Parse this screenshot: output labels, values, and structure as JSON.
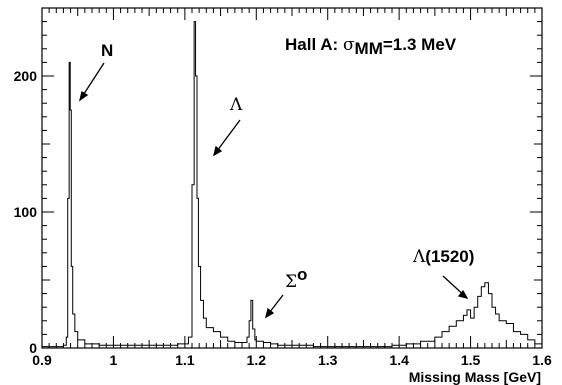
{
  "chart_data": {
    "type": "line",
    "title": "",
    "xlabel": "Missing Mass [GeV]",
    "ylabel": "",
    "xlim": [
      0.9,
      1.6
    ],
    "ylim": [
      0,
      250
    ],
    "x_ticks": [
      "0.9",
      "1",
      "1.1",
      "1.2",
      "1.3",
      "1.4",
      "1.5",
      "1.6"
    ],
    "y_ticks": [
      "0",
      "100",
      "200"
    ],
    "grid": false,
    "style": "histogram-step",
    "annotations": {
      "label_text": "Hall A: ",
      "sigma_symbol": "σ",
      "sigma_subscript": "MM",
      "sigma_value": "=1.3 MeV",
      "peak_n": "N",
      "peak_lambda": "Λ",
      "peak_sigma0_symbol": "Σ",
      "peak_sigma0_sup": "o",
      "peak_lambda1520_symbol": "Λ",
      "peak_lambda1520_text": "(1520)"
    },
    "series": [
      {
        "x": [
          0.9,
          0.91,
          0.92,
          0.93,
          0.934,
          0.936,
          0.938,
          0.9395,
          0.941,
          0.943,
          0.946,
          0.95,
          0.96,
          0.98,
          1.0,
          1.03,
          1.06,
          1.09,
          1.105,
          1.11,
          1.113,
          1.115,
          1.117,
          1.119,
          1.122,
          1.126,
          1.13,
          1.14,
          1.15,
          1.16,
          1.17,
          1.18,
          1.187,
          1.19,
          1.1925,
          1.195,
          1.198,
          1.2,
          1.21,
          1.22,
          1.23,
          1.25,
          1.28,
          1.3,
          1.33,
          1.36,
          1.39,
          1.41,
          1.43,
          1.45,
          1.46,
          1.47,
          1.48,
          1.49,
          1.495,
          1.5,
          1.505,
          1.51,
          1.515,
          1.52,
          1.525,
          1.53,
          1.535,
          1.54,
          1.55,
          1.56,
          1.57,
          1.58,
          1.59,
          1.6
        ],
        "y": [
          1,
          1,
          1,
          2,
          8,
          110,
          210,
          175,
          60,
          25,
          12,
          6,
          3,
          2,
          2,
          2,
          2,
          3,
          8,
          120,
          240,
          200,
          110,
          60,
          35,
          22,
          15,
          12,
          8,
          5,
          4,
          4,
          8,
          20,
          35,
          14,
          6,
          5,
          4,
          3,
          2,
          2,
          1,
          1,
          1,
          1,
          2,
          3,
          5,
          8,
          12,
          16,
          20,
          24,
          28,
          22,
          30,
          38,
          45,
          48,
          40,
          30,
          25,
          20,
          18,
          12,
          10,
          6,
          3,
          1
        ]
      }
    ]
  }
}
